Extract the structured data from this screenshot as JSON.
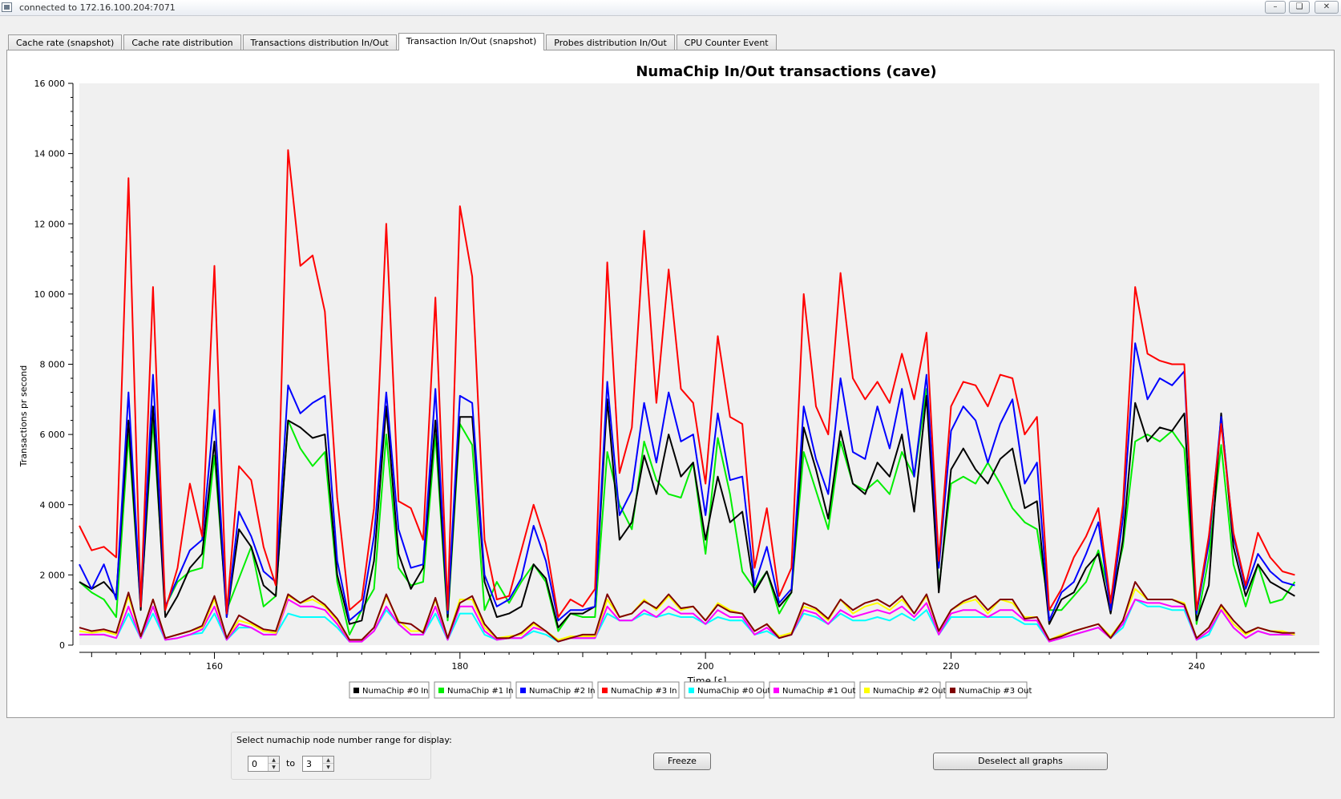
{
  "window": {
    "title": "connected to 172.16.100.204:7071",
    "buttons": {
      "minimize": "–",
      "restore": "❏",
      "close": "✕"
    }
  },
  "tabs": [
    {
      "label": "Cache rate (snapshot)",
      "active": false
    },
    {
      "label": "Cache rate distribution",
      "active": false
    },
    {
      "label": "Transactions distribution In/Out",
      "active": false
    },
    {
      "label": "Transaction In/Out (snapshot)",
      "active": true
    },
    {
      "label": "Probes distribution In/Out",
      "active": false
    },
    {
      "label": "CPU Counter Event",
      "active": false
    }
  ],
  "chart_data": {
    "type": "line",
    "title": "NumaChip In/Out transactions (cave)",
    "xlabel": "Time [s]",
    "ylabel": "Transactions pr second",
    "xlim": [
      149,
      250
    ],
    "ylim": [
      0,
      16000
    ],
    "x_tick_labels": [
      "160",
      "180",
      "200",
      "220",
      "240"
    ],
    "x_ticks": [
      160,
      180,
      200,
      220,
      240
    ],
    "y_tick_labels": [
      "0",
      "2 000",
      "4 000",
      "6 000",
      "8 000",
      "10 000",
      "12 000",
      "14 000",
      "16 000"
    ],
    "y_ticks": [
      0,
      2000,
      4000,
      6000,
      8000,
      10000,
      12000,
      14000,
      16000
    ],
    "grid": false,
    "legend_position": "bottom",
    "x": [
      149,
      150,
      151,
      152,
      153,
      154,
      155,
      156,
      157,
      158,
      159,
      160,
      161,
      162,
      163,
      164,
      165,
      166,
      167,
      168,
      169,
      170,
      171,
      172,
      173,
      174,
      175,
      176,
      177,
      178,
      179,
      180,
      181,
      182,
      183,
      184,
      185,
      186,
      187,
      188,
      189,
      190,
      191,
      192,
      193,
      194,
      195,
      196,
      197,
      198,
      199,
      200,
      201,
      202,
      203,
      204,
      205,
      206,
      207,
      208,
      209,
      210,
      211,
      212,
      213,
      214,
      215,
      216,
      217,
      218,
      219,
      220,
      221,
      222,
      223,
      224,
      225,
      226,
      227,
      228,
      229,
      230,
      231,
      232,
      233,
      234,
      235,
      236,
      237,
      238,
      239,
      240,
      241,
      242,
      243,
      244,
      245,
      246,
      247,
      248
    ],
    "series": [
      {
        "name": "NumaChip #0 In",
        "color": "#000000",
        "values": [
          1800,
          1600,
          1800,
          1400,
          6400,
          1000,
          6800,
          800,
          1400,
          2200,
          2600,
          5800,
          800,
          3300,
          2800,
          1700,
          1400,
          6400,
          6200,
          5900,
          6000,
          2000,
          600,
          700,
          2400,
          6800,
          2600,
          1600,
          2200,
          6400,
          800,
          6500,
          6500,
          1800,
          800,
          900,
          1100,
          2300,
          1900,
          500,
          900,
          900,
          1100,
          7000,
          3000,
          3500,
          5400,
          4300,
          6000,
          4800,
          5200,
          3000,
          4800,
          3500,
          3800,
          1500,
          2100,
          1100,
          1500,
          6200,
          5000,
          3600,
          6100,
          4600,
          4300,
          5200,
          4800,
          6000,
          3800,
          7100,
          1500,
          5000,
          5600,
          5000,
          4600,
          5300,
          5600,
          3900,
          4100,
          600,
          1300,
          1500,
          2200,
          2600,
          900,
          3000,
          6900,
          5800,
          6200,
          6100,
          6600,
          700,
          1700,
          6600,
          2800,
          1400,
          2300,
          1800,
          1600,
          1400
        ]
      },
      {
        "name": "NumaChip #1 In",
        "color": "#00ee00",
        "values": [
          1800,
          1500,
          1300,
          800,
          6000,
          1100,
          6400,
          1100,
          1800,
          2100,
          2200,
          5400,
          1000,
          1900,
          2800,
          1100,
          1400,
          6400,
          5600,
          5100,
          5500,
          1800,
          300,
          1000,
          1600,
          6000,
          2200,
          1700,
          1800,
          6000,
          700,
          6300,
          5700,
          1000,
          1800,
          1200,
          1800,
          2300,
          1800,
          400,
          900,
          800,
          800,
          5500,
          4000,
          3300,
          5800,
          4700,
          4300,
          4200,
          5200,
          2600,
          5900,
          4300,
          2100,
          1600,
          2100,
          900,
          1500,
          5500,
          4400,
          3300,
          5800,
          4600,
          4400,
          4700,
          4300,
          5500,
          4800,
          7300,
          1600,
          4600,
          4800,
          4600,
          5200,
          4600,
          3900,
          3500,
          3300,
          1000,
          1000,
          1400,
          1800,
          2700,
          1300,
          2800,
          5800,
          6000,
          5800,
          6100,
          5600,
          600,
          2500,
          5700,
          2300,
          1100,
          2300,
          1200,
          1300,
          1800
        ]
      },
      {
        "name": "NumaChip #2 In",
        "color": "#0000ff",
        "values": [
          2300,
          1600,
          2300,
          1300,
          7200,
          1100,
          7700,
          1100,
          1900,
          2700,
          3000,
          6700,
          800,
          3800,
          3100,
          2100,
          1800,
          7400,
          6600,
          6900,
          7100,
          2400,
          700,
          1000,
          3100,
          7200,
          3300,
          2200,
          2300,
          7300,
          900,
          7100,
          6900,
          2000,
          1100,
          1300,
          1900,
          3400,
          2400,
          700,
          1000,
          1000,
          1100,
          7500,
          3700,
          4400,
          6900,
          5200,
          7200,
          5800,
          6000,
          3700,
          6600,
          4700,
          4800,
          1700,
          2800,
          1200,
          1600,
          6800,
          5300,
          4300,
          7600,
          5500,
          5300,
          6800,
          5600,
          7300,
          4800,
          7700,
          2200,
          6100,
          6800,
          6400,
          5200,
          6300,
          7000,
          4600,
          5200,
          700,
          1500,
          1800,
          2600,
          3500,
          1000,
          3600,
          8600,
          7000,
          7600,
          7400,
          7800,
          900,
          2900,
          6500,
          3100,
          1600,
          2600,
          2100,
          1800,
          1700
        ]
      },
      {
        "name": "NumaChip #3 In",
        "color": "#ff0000",
        "values": [
          3400,
          2700,
          2800,
          2500,
          13300,
          1100,
          10200,
          1000,
          2200,
          4600,
          3100,
          10800,
          900,
          5100,
          4700,
          2800,
          1700,
          14100,
          10800,
          11100,
          9500,
          4200,
          1000,
          1300,
          3900,
          12000,
          4100,
          3900,
          3000,
          9900,
          1000,
          12500,
          10500,
          3000,
          1300,
          1400,
          2700,
          4000,
          2900,
          800,
          1300,
          1100,
          1600,
          10900,
          4900,
          6200,
          11800,
          6900,
          10700,
          7300,
          6900,
          4600,
          8800,
          6500,
          6300,
          2200,
          3900,
          1400,
          2200,
          10000,
          6800,
          6000,
          10600,
          7600,
          7000,
          7500,
          6900,
          8300,
          7000,
          8900,
          2400,
          6800,
          7500,
          7400,
          6800,
          7700,
          7600,
          6000,
          6500,
          1000,
          1600,
          2500,
          3100,
          3900,
          1200,
          4000,
          10200,
          8300,
          8100,
          8000,
          8000,
          1000,
          3100,
          6300,
          3200,
          1700,
          3200,
          2500,
          2100,
          2000
        ]
      },
      {
        "name": "NumaChip #0 Out",
        "color": "#00ffff",
        "values": [
          300,
          300,
          300,
          200,
          900,
          200,
          900,
          150,
          200,
          300,
          350,
          900,
          150,
          500,
          500,
          300,
          300,
          900,
          800,
          800,
          800,
          500,
          100,
          100,
          400,
          1000,
          600,
          300,
          300,
          900,
          150,
          900,
          900,
          300,
          150,
          200,
          200,
          400,
          300,
          100,
          200,
          200,
          200,
          900,
          700,
          700,
          900,
          800,
          900,
          800,
          800,
          600,
          800,
          700,
          700,
          300,
          400,
          200,
          300,
          900,
          800,
          600,
          900,
          700,
          700,
          800,
          700,
          900,
          700,
          1000,
          300,
          800,
          800,
          800,
          800,
          800,
          800,
          600,
          600,
          100,
          200,
          300,
          400,
          500,
          200,
          500,
          1300,
          1100,
          1100,
          1000,
          1000,
          150,
          300,
          1000,
          500,
          200,
          400,
          300,
          300,
          300
        ]
      },
      {
        "name": "NumaChip #1 Out",
        "color": "#ff00ff",
        "values": [
          300,
          300,
          300,
          200,
          1100,
          200,
          1100,
          150,
          200,
          300,
          450,
          1100,
          150,
          600,
          500,
          300,
          300,
          1300,
          1100,
          1100,
          1000,
          600,
          100,
          100,
          400,
          1100,
          600,
          300,
          300,
          1100,
          150,
          1100,
          1100,
          400,
          150,
          200,
          200,
          500,
          400,
          100,
          200,
          200,
          200,
          1100,
          700,
          700,
          1000,
          800,
          1100,
          900,
          900,
          600,
          1000,
          800,
          800,
          300,
          500,
          200,
          300,
          1000,
          900,
          600,
          1000,
          800,
          900,
          1000,
          900,
          1100,
          800,
          1200,
          300,
          900,
          1000,
          1000,
          800,
          1000,
          1000,
          700,
          700,
          100,
          200,
          300,
          400,
          500,
          200,
          600,
          1300,
          1200,
          1200,
          1100,
          1100,
          150,
          400,
          1000,
          500,
          200,
          400,
          300,
          300,
          300
        ]
      },
      {
        "name": "NumaChip #2 Out",
        "color": "#ffff00",
        "values": [
          400,
          350,
          400,
          300,
          1400,
          250,
          1300,
          200,
          300,
          400,
          500,
          1300,
          200,
          700,
          600,
          400,
          350,
          1400,
          1200,
          1300,
          1100,
          700,
          150,
          150,
          500,
          1400,
          700,
          400,
          400,
          1300,
          200,
          1300,
          1300,
          500,
          200,
          250,
          300,
          600,
          400,
          150,
          250,
          250,
          250,
          1300,
          800,
          900,
          1300,
          1000,
          1400,
          1000,
          1100,
          700,
          1200,
          1000,
          900,
          400,
          600,
          250,
          350,
          1100,
          1000,
          700,
          1300,
          900,
          1100,
          1200,
          1000,
          1300,
          900,
          1400,
          400,
          1000,
          1200,
          1300,
          900,
          1300,
          1200,
          800,
          800,
          150,
          300,
          400,
          500,
          600,
          250,
          700,
          1600,
          1300,
          1300,
          1300,
          1200,
          200,
          500,
          1100,
          600,
          300,
          500,
          400,
          400,
          300
        ]
      },
      {
        "name": "NumaChip #3 Out",
        "color": "#800000",
        "values": [
          500,
          400,
          450,
          350,
          1500,
          250,
          1300,
          200,
          300,
          400,
          550,
          1400,
          200,
          850,
          650,
          450,
          400,
          1450,
          1200,
          1400,
          1150,
          750,
          150,
          150,
          500,
          1450,
          650,
          600,
          350,
          1350,
          200,
          1200,
          1400,
          600,
          200,
          200,
          350,
          650,
          400,
          100,
          200,
          300,
          300,
          1450,
          800,
          900,
          1250,
          1050,
          1450,
          1050,
          1100,
          700,
          1150,
          950,
          900,
          400,
          600,
          200,
          300,
          1200,
          1050,
          750,
          1300,
          1000,
          1200,
          1300,
          1100,
          1400,
          900,
          1450,
          400,
          1000,
          1250,
          1400,
          1000,
          1300,
          1300,
          750,
          800,
          150,
          250,
          400,
          500,
          600,
          200,
          700,
          1800,
          1300,
          1300,
          1300,
          1150,
          200,
          500,
          1150,
          700,
          350,
          500,
          400,
          350,
          350
        ]
      }
    ]
  },
  "controls": {
    "range_label": "Select numachip node number range for display:",
    "from_value": "0",
    "to_label": "to",
    "to_value": "3",
    "freeze_label": "Freeze",
    "deselect_label": "Deselect all graphs"
  }
}
